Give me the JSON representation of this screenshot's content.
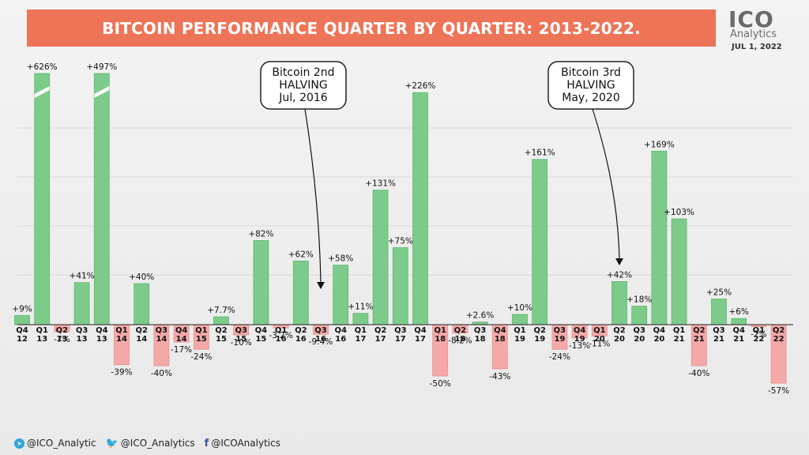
{
  "header": {
    "title": "BITCOIN PERFORMANCE QUARTER BY QUARTER: 2013-2022.",
    "logo_word": "ICO",
    "logo_sub": "Analytics",
    "logo_date": "JUL 1, 2022"
  },
  "footer": {
    "telegram": "@ICO_Analytic",
    "twitter": "@ICO_Analytics",
    "facebook": "@ICOAnalytics"
  },
  "chart_data": {
    "type": "bar",
    "title": "BITCOIN PERFORMANCE QUARTER BY QUARTER: 2013-2022.",
    "xlabel": "",
    "ylabel": "",
    "quarters": [
      "Q4",
      "Q1",
      "Q2",
      "Q3",
      "Q4",
      "Q1",
      "Q2",
      "Q3",
      "Q4",
      "Q1",
      "Q2",
      "Q3",
      "Q4",
      "Q1",
      "Q2",
      "Q3",
      "Q4",
      "Q1",
      "Q2",
      "Q3",
      "Q4",
      "Q1",
      "Q2",
      "Q3",
      "Q4",
      "Q1",
      "Q2",
      "Q3",
      "Q4",
      "Q1",
      "Q2",
      "Q3",
      "Q4",
      "Q1",
      "Q2",
      "Q3",
      "Q4",
      "Q1",
      "Q2"
    ],
    "years": [
      "12",
      "13",
      "13",
      "13",
      "13",
      "14",
      "14",
      "14",
      "14",
      "15",
      "15",
      "15",
      "15",
      "16",
      "16",
      "16",
      "16",
      "17",
      "17",
      "17",
      "17",
      "18",
      "18",
      "18",
      "18",
      "19",
      "19",
      "19",
      "19",
      "20",
      "20",
      "20",
      "20",
      "21",
      "21",
      "21",
      "21",
      "22",
      "22"
    ],
    "values": [
      9,
      626,
      -7,
      41,
      497,
      -39,
      40,
      -40,
      -17,
      -24,
      7.7,
      -10,
      82,
      -3.2,
      62,
      -9.4,
      58,
      11,
      131,
      75,
      226,
      -50,
      -8.2,
      2.6,
      -43,
      10,
      161,
      -24,
      -13,
      -11,
      42,
      18,
      169,
      103,
      -40,
      25,
      6,
      -2,
      -57
    ],
    "value_labels": [
      "+9%",
      "+626%",
      "-7%",
      "+41%",
      "+497%",
      "-39%",
      "+40%",
      "-40%",
      "-17%",
      "-24%",
      "+7.7%",
      "-10%",
      "+82%",
      "-3.2%",
      "+62%",
      "-9.4%",
      "+58%",
      "+11%",
      "+131%",
      "+75%",
      "+226%",
      "-50%",
      "-8.2%",
      "+2.6%",
      "-43%",
      "+10%",
      "+161%",
      "-24%",
      "-13%",
      "-11%",
      "+42%",
      "+18%",
      "+169%",
      "+103%",
      "-40%",
      "+25%",
      "+6%",
      "-2%",
      "-57%"
    ],
    "truncated_bars": [
      1,
      4
    ],
    "colors": {
      "positive": "#7ccb8a",
      "negative": "#f4a9a8",
      "positive_border": "#5fb770",
      "negative_border": "#e58f8e"
    },
    "grid": true,
    "annotations": [
      {
        "lines": [
          "Bitcoin 2nd",
          "HALVING",
          "Jul, 2016"
        ],
        "target_index": 15
      },
      {
        "lines": [
          "Bitcoin 3rd",
          "HALVING",
          "May, 2020"
        ],
        "target_index": 30
      }
    ]
  }
}
